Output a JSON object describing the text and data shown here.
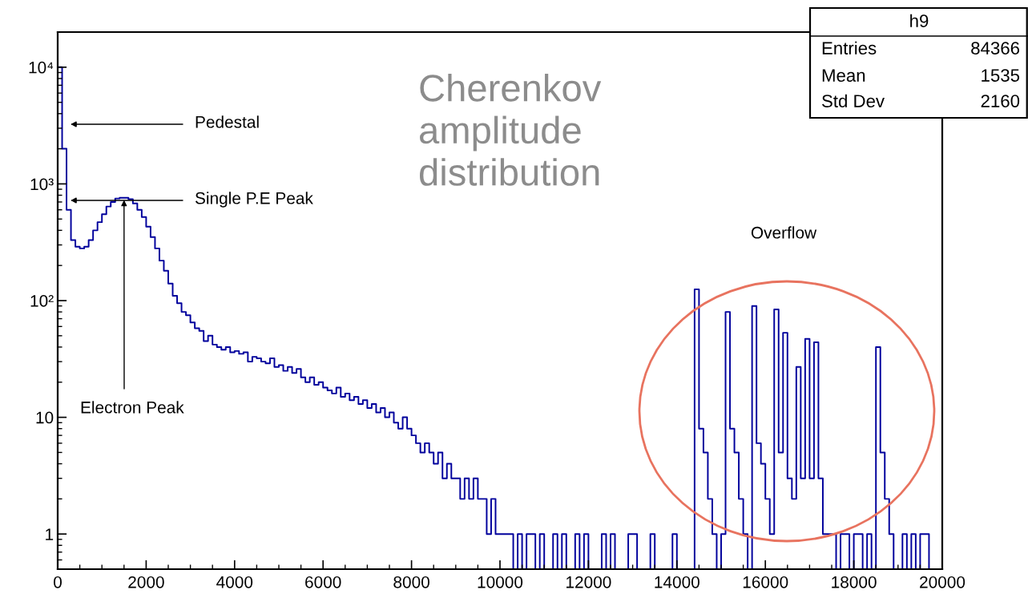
{
  "chart_data": {
    "type": "histogram",
    "title": "Cherenkov\namplitude\ndistribution",
    "bins": [
      0,
      100,
      200,
      300,
      400,
      500,
      600,
      700,
      800,
      900,
      1000,
      1100,
      1200,
      1300,
      1400,
      1500,
      1600,
      1700,
      1800,
      1900,
      2000,
      2100,
      2200,
      2300,
      2400,
      2500,
      2600,
      2700,
      2800,
      2900,
      3000,
      3100,
      3200,
      3300,
      3400,
      3500,
      3600,
      3700,
      3800,
      3900,
      4000,
      4100,
      4200,
      4300,
      4400,
      4500,
      4600,
      4700,
      4800,
      4900,
      5000,
      5100,
      5200,
      5300,
      5400,
      5500,
      5600,
      5700,
      5800,
      5900,
      6000,
      6100,
      6200,
      6300,
      6400,
      6500,
      6600,
      6700,
      6800,
      6900,
      7000,
      7100,
      7200,
      7300,
      7400,
      7500,
      7600,
      7700,
      7800,
      7900,
      8000,
      8100,
      8200,
      8300,
      8400,
      8500,
      8600,
      8700,
      8800,
      8900,
      9000,
      9100,
      9200,
      9300,
      9400,
      9500,
      9600,
      9700,
      9800,
      9900,
      10000,
      10100,
      10200,
      10300,
      10400,
      10500,
      10600,
      10700,
      10800,
      10900,
      11000,
      11100,
      11200,
      11300,
      11400,
      11500,
      11600,
      11700,
      11800,
      11900,
      12000,
      12100,
      12200,
      12300,
      12400,
      12500,
      12600,
      12700,
      12800,
      12900,
      13000,
      13100,
      13200,
      13300,
      13400,
      13500,
      13600,
      13700,
      13800,
      13900,
      14000,
      14100,
      14200,
      14300,
      14400,
      14500,
      14600,
      14700,
      14800,
      14900,
      15000,
      15100,
      15200,
      15300,
      15400,
      15500,
      15600,
      15700,
      15800,
      15900,
      16000,
      16100,
      16200,
      16300,
      16400,
      16500,
      16600,
      16700,
      16800,
      16900,
      17000,
      17100,
      17200,
      17300,
      17400,
      17500,
      17600,
      17700,
      17800,
      17900,
      18000,
      18100,
      18200,
      18300,
      18400,
      18500,
      18600,
      18700,
      18800,
      18900,
      19000,
      19100,
      19200,
      19300,
      19400,
      19500,
      19600,
      19700,
      19800,
      19900,
      20000
    ],
    "values": [
      10000,
      2000,
      600,
      330,
      290,
      280,
      290,
      330,
      400,
      470,
      550,
      640,
      700,
      750,
      760,
      760,
      740,
      680,
      600,
      520,
      430,
      350,
      280,
      220,
      180,
      140,
      110,
      95,
      80,
      75,
      65,
      58,
      55,
      45,
      50,
      42,
      40,
      38,
      40,
      36,
      37,
      35,
      36,
      30,
      33,
      32,
      30,
      29,
      32,
      27,
      28,
      25,
      27,
      24,
      26,
      22,
      20,
      22,
      19,
      20,
      18,
      17,
      16,
      18,
      15,
      16,
      14,
      15,
      13,
      14,
      12,
      13,
      11,
      12,
      10,
      11,
      9,
      8,
      10,
      8,
      7,
      6,
      5,
      6,
      5,
      4,
      5,
      3,
      4,
      3,
      3,
      2,
      3,
      2,
      3,
      2,
      2,
      1,
      2,
      1,
      1,
      1,
      1,
      null,
      1,
      null,
      1,
      1,
      null,
      1,
      null,
      null,
      1,
      null,
      1,
      null,
      null,
      1,
      null,
      1,
      null,
      null,
      null,
      1,
      null,
      1,
      null,
      null,
      null,
      1,
      1,
      null,
      null,
      null,
      1,
      null,
      null,
      null,
      null,
      1,
      null,
      null,
      null,
      null,
      125,
      8,
      5,
      2,
      1,
      null,
      1,
      80,
      8,
      5,
      2,
      1,
      null,
      90,
      6,
      4,
      2,
      1,
      84,
      5,
      53,
      3,
      2,
      27,
      3,
      47,
      3,
      44,
      3,
      1,
      1,
      1,
      null,
      1,
      1,
      null,
      1,
      1,
      null,
      1,
      null,
      40,
      5,
      2,
      1,
      null,
      null,
      1,
      null,
      1,
      null,
      1,
      1,
      null,
      null,
      null
    ],
    "color": "#00009c",
    "log": true,
    "xlim": [
      0,
      20000
    ],
    "xticks": [
      0,
      2000,
      4000,
      6000,
      8000,
      10000,
      12000,
      14000,
      16000,
      18000,
      20000
    ],
    "ylim": [
      0.5,
      20000
    ],
    "yticks": [
      1,
      10,
      {
        "value": 100,
        "label": "10²"
      },
      {
        "value": 1000,
        "label": "10³"
      },
      {
        "value": 10000,
        "label": "10⁴"
      }
    ],
    "annotations": [
      "Pedestal",
      "Single P.E Peak",
      {
        "text": "Electron Peak",
        "x": 1500,
        "y": 760
      },
      "Overflow",
      "h9",
      "Entries",
      "84366",
      "Mean",
      "1535",
      "Std Dev",
      "2160"
    ]
  }
}
